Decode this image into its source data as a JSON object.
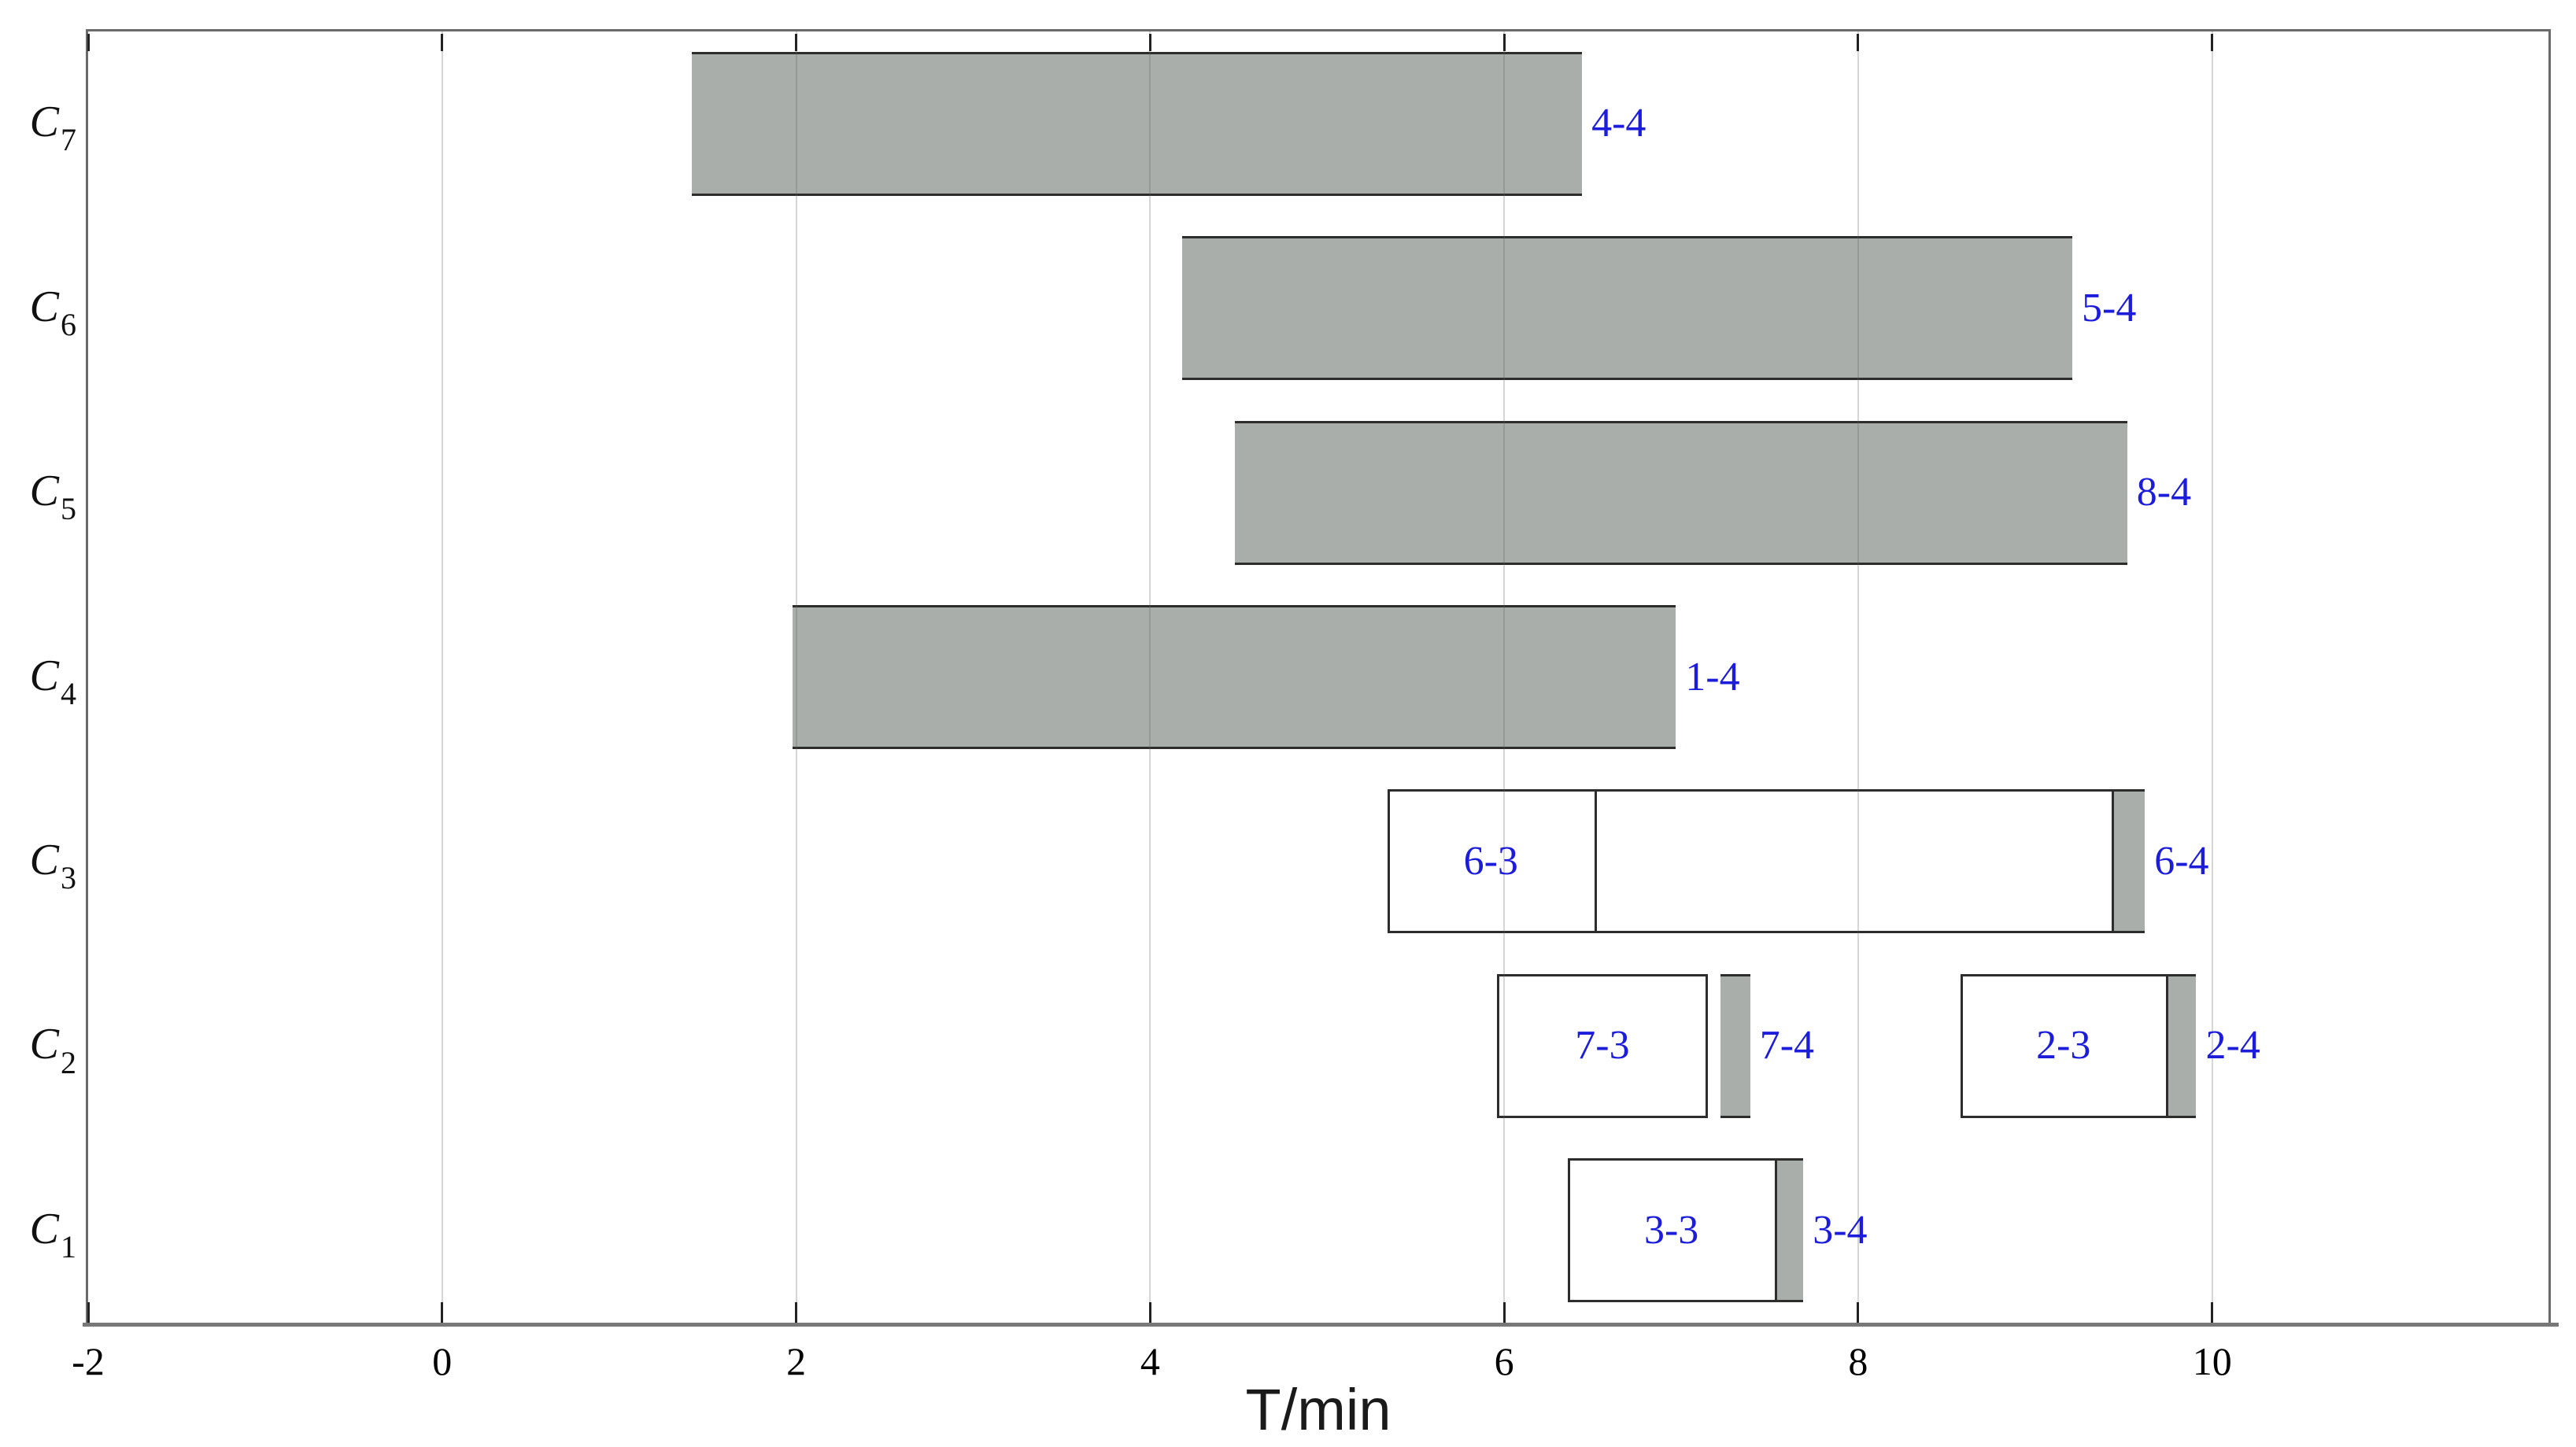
{
  "chart_data": {
    "type": "gantt",
    "title": "",
    "xlabel": "T/min",
    "x_ticks": [
      -2,
      0,
      2,
      4,
      6,
      8,
      10
    ],
    "x_range": [
      -2,
      11.9
    ],
    "grid": "vertical gridlines at each x tick, drawn over the bars",
    "legend": "none",
    "bar_height_frac": 0.8,
    "colors": {
      "bar_fill_gray": "#a9aeab",
      "bar_fill_white": "#ffffff",
      "bar_border": "#2d2d2d",
      "task_label_blue": "#1c1cdb",
      "axis_gray": "#6a6a6a",
      "tick_black": "#222222"
    },
    "rows_note": "rows listed top to bottom; each group is one outlined bar made of segments [from,to] in minutes",
    "rows": [
      {
        "category": "C7",
        "label_main": "C",
        "label_sub": "7",
        "groups": [
          {
            "segments": [
              {
                "from": 1.41,
                "to": 6.44,
                "fill": "gray"
              }
            ],
            "outside_label": "4-4"
          }
        ]
      },
      {
        "category": "C6",
        "label_main": "C",
        "label_sub": "6",
        "groups": [
          {
            "segments": [
              {
                "from": 4.18,
                "to": 9.21,
                "fill": "gray"
              }
            ],
            "outside_label": "5-4"
          }
        ]
      },
      {
        "category": "C5",
        "label_main": "C",
        "label_sub": "5",
        "groups": [
          {
            "segments": [
              {
                "from": 4.48,
                "to": 9.52,
                "fill": "gray"
              }
            ],
            "outside_label": "8-4"
          }
        ]
      },
      {
        "category": "C4",
        "label_main": "C",
        "label_sub": "4",
        "groups": [
          {
            "segments": [
              {
                "from": 1.98,
                "to": 6.97,
                "fill": "gray"
              }
            ],
            "outside_label": "1-4"
          }
        ]
      },
      {
        "category": "C3",
        "label_main": "C",
        "label_sub": "3",
        "groups": [
          {
            "segments": [
              {
                "from": 5.34,
                "to": 6.51,
                "fill": "white",
                "label": "6-3"
              },
              {
                "from": 6.51,
                "to": 9.43,
                "fill": "white"
              },
              {
                "from": 9.43,
                "to": 9.62,
                "fill": "gray"
              }
            ],
            "outside_label": "6-4"
          }
        ]
      },
      {
        "category": "C2",
        "label_main": "C",
        "label_sub": "2",
        "groups": [
          {
            "segments": [
              {
                "from": 5.96,
                "to": 7.15,
                "fill": "white",
                "label": "7-3"
              }
            ]
          },
          {
            "segments": [
              {
                "from": 7.22,
                "to": 7.39,
                "fill": "gray"
              }
            ],
            "outside_label": "7-4"
          },
          {
            "segments": [
              {
                "from": 8.58,
                "to": 9.74,
                "fill": "white",
                "label": "2-3"
              },
              {
                "from": 9.74,
                "to": 9.91,
                "fill": "gray"
              }
            ],
            "outside_label": "2-4"
          }
        ]
      },
      {
        "category": "C1",
        "label_main": "C",
        "label_sub": "1",
        "groups": [
          {
            "segments": [
              {
                "from": 6.36,
                "to": 7.53,
                "fill": "white",
                "label": "3-3"
              },
              {
                "from": 7.53,
                "to": 7.69,
                "fill": "gray"
              }
            ],
            "outside_label": "3-4"
          }
        ]
      }
    ]
  }
}
